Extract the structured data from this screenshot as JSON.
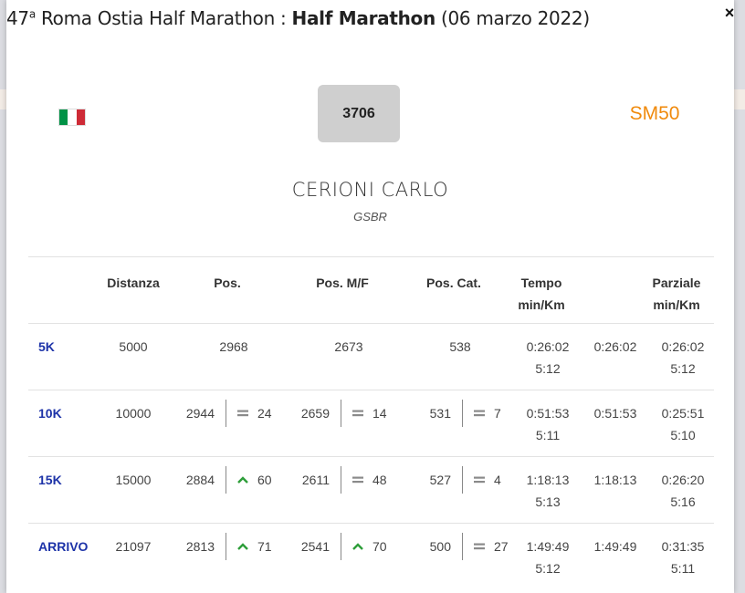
{
  "modal": {
    "title_prefix": "47",
    "title_sup": "a",
    "title_event": " Roma Ostia Half Marathon : ",
    "title_race": "Half Marathon",
    "title_date": " (06 marzo 2022)",
    "close_label": "×"
  },
  "athlete": {
    "bib": "3706",
    "category": "SM50",
    "name": "CERIONI CARLO",
    "team": "GSBR",
    "flag_colors": [
      "#009246",
      "#ffffff",
      "#ce2b37"
    ]
  },
  "table": {
    "headers": {
      "distanza": "Distanza",
      "pos": "Pos.",
      "pos_mf": "Pos. M/F",
      "pos_cat": "Pos. Cat.",
      "tempo_1": "Tempo",
      "tempo_2": "min/Km",
      "parziale_1": "Parziale",
      "parziale_2": "min/Km"
    },
    "rows": [
      {
        "label": "5K",
        "distanza": "5000",
        "pos": "2968",
        "pos_mf": "2673",
        "pos_cat": "538",
        "tempo": "0:26:02",
        "tempo_pace": "5:12",
        "time": "0:26:02",
        "parziale": "0:26:02",
        "parziale_pace": "5:12"
      },
      {
        "label": "10K",
        "distanza": "10000",
        "pos": "2944",
        "pos_trend": "equal",
        "pos_delta": "24",
        "pos_mf": "2659",
        "pos_mf_trend": "equal",
        "pos_mf_delta": "14",
        "pos_cat": "531",
        "pos_cat_trend": "equal",
        "pos_cat_delta": "7",
        "tempo": "0:51:53",
        "tempo_pace": "5:11",
        "time": "0:51:53",
        "parziale": "0:25:51",
        "parziale_pace": "5:10"
      },
      {
        "label": "15K",
        "distanza": "15000",
        "pos": "2884",
        "pos_trend": "up",
        "pos_delta": "60",
        "pos_mf": "2611",
        "pos_mf_trend": "equal",
        "pos_mf_delta": "48",
        "pos_cat": "527",
        "pos_cat_trend": "equal",
        "pos_cat_delta": "4",
        "tempo": "1:18:13",
        "tempo_pace": "5:13",
        "time": "1:18:13",
        "parziale": "0:26:20",
        "parziale_pace": "5:16"
      },
      {
        "label": "ARRIVO",
        "distanza": "21097",
        "pos": "2813",
        "pos_trend": "up",
        "pos_delta": "71",
        "pos_mf": "2541",
        "pos_mf_trend": "up",
        "pos_mf_delta": "70",
        "pos_cat": "500",
        "pos_cat_trend": "equal",
        "pos_cat_delta": "27",
        "tempo": "1:49:49",
        "tempo_pace": "5:12",
        "time": "1:49:49",
        "parziale": "0:31:35",
        "parziale_pace": "5:11"
      }
    ]
  },
  "colors": {
    "up": "#2e9e3a",
    "equal": "#888888",
    "accent": "#f08a0c",
    "link": "#1d33a8"
  }
}
